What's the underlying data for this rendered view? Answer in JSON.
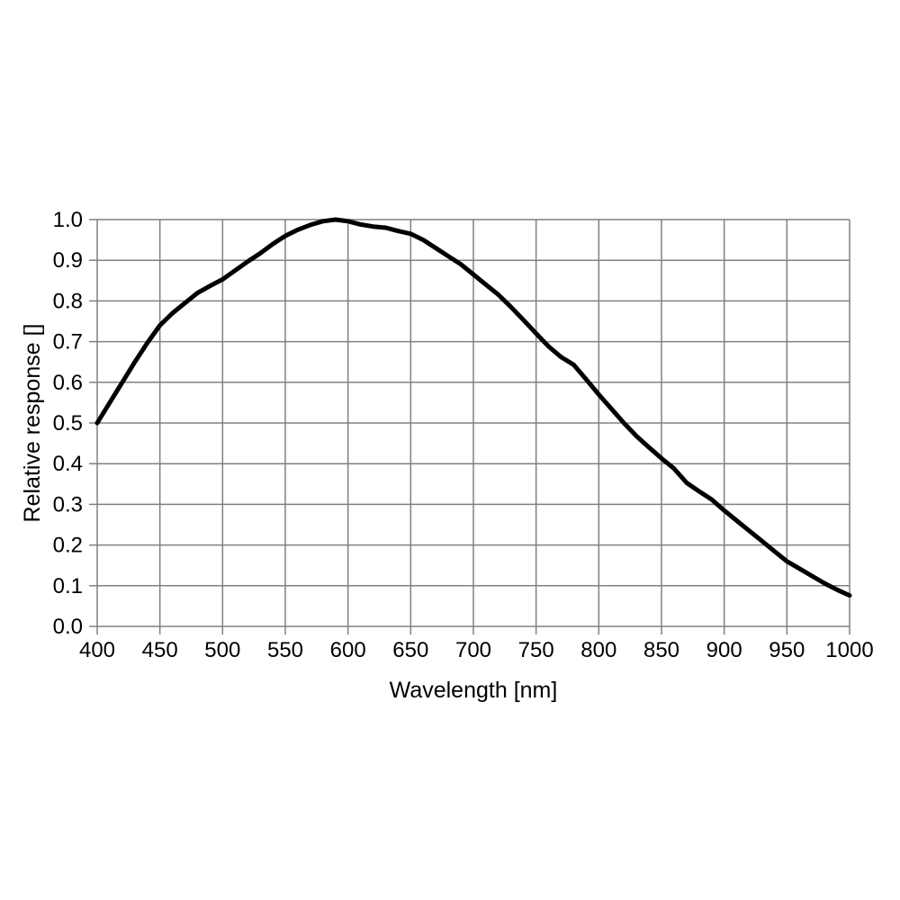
{
  "page": {
    "background": "#ffffff"
  },
  "chart_data": {
    "type": "line",
    "title": "",
    "xlabel": "Wavelength [nm]",
    "ylabel": "Relative response []",
    "xlim": [
      400,
      1000
    ],
    "ylim": [
      0.0,
      1.0
    ],
    "grid": true,
    "legend": "none",
    "x_ticks": [
      400,
      450,
      500,
      550,
      600,
      650,
      700,
      750,
      800,
      850,
      900,
      950,
      1000
    ],
    "x_tick_labels": [
      "400",
      "450",
      "500",
      "550",
      "600",
      "650",
      "700",
      "750",
      "800",
      "850",
      "900",
      "950",
      "1000"
    ],
    "y_ticks": [
      0.0,
      0.1,
      0.2,
      0.3,
      0.4,
      0.5,
      0.6,
      0.7,
      0.8,
      0.9,
      1.0
    ],
    "y_tick_labels": [
      "0.0",
      "0.1",
      "0.2",
      "0.3",
      "0.4",
      "0.5",
      "0.6",
      "0.7",
      "0.8",
      "0.9",
      "1.0"
    ],
    "colors": {
      "curve": "#000000",
      "grid": "#808080",
      "text": "#000000",
      "background": "#ffffff"
    },
    "series": [
      {
        "name": "relative-response",
        "color": "#000000",
        "line_width": 5,
        "x": [
          400,
          410,
          420,
          430,
          440,
          450,
          460,
          470,
          480,
          490,
          500,
          510,
          520,
          530,
          540,
          550,
          560,
          570,
          580,
          590,
          600,
          610,
          620,
          630,
          640,
          650,
          660,
          670,
          680,
          690,
          700,
          710,
          720,
          730,
          740,
          750,
          760,
          770,
          780,
          790,
          800,
          810,
          820,
          830,
          840,
          850,
          860,
          870,
          880,
          890,
          900,
          910,
          920,
          930,
          940,
          950,
          960,
          970,
          980,
          990,
          1000
        ],
        "y": [
          0.5,
          0.55,
          0.6,
          0.65,
          0.697,
          0.74,
          0.77,
          0.795,
          0.82,
          0.837,
          0.853,
          0.875,
          0.897,
          0.917,
          0.94,
          0.96,
          0.975,
          0.987,
          0.996,
          1.0,
          0.996,
          0.988,
          0.983,
          0.98,
          0.972,
          0.965,
          0.95,
          0.93,
          0.91,
          0.89,
          0.865,
          0.84,
          0.815,
          0.785,
          0.753,
          0.72,
          0.688,
          0.662,
          0.643,
          0.607,
          0.57,
          0.535,
          0.5,
          0.468,
          0.44,
          0.413,
          0.388,
          0.353,
          0.332,
          0.312,
          0.285,
          0.26,
          0.235,
          0.21,
          0.185,
          0.16,
          0.142,
          0.124,
          0.106,
          0.09,
          0.076
        ]
      }
    ]
  }
}
